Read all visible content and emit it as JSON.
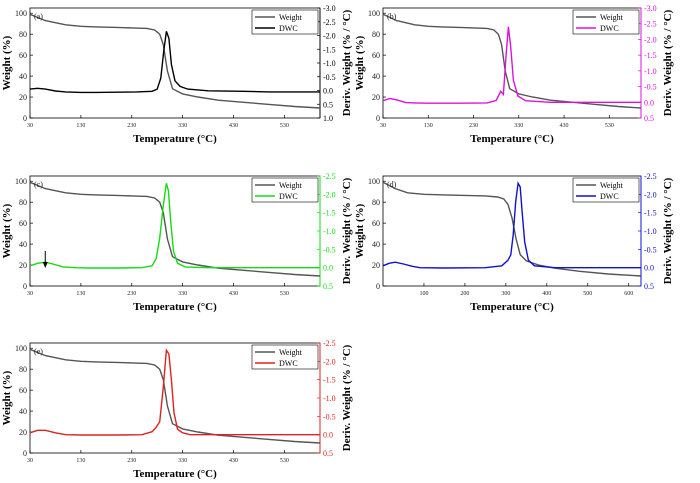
{
  "figure": "TGA and DTG curves, panels (a)-(e)",
  "chart_data": [
    {
      "type": "line",
      "panel": "(a)",
      "dwc_color": "#000000",
      "xlabel": "Temperature (°C)",
      "ylabel": "Weight (%)",
      "y2label": "Deriv. Weight (% / °C)",
      "xlim": [
        30,
        600
      ],
      "ylim": [
        0,
        105
      ],
      "y2lim": [
        -3.0,
        1.0
      ],
      "x_ticks": [
        "30",
        "130",
        "230",
        "330",
        "430",
        "530"
      ],
      "x_tick_values": [
        30,
        130,
        230,
        330,
        430,
        530
      ],
      "y_ticks": [
        "0",
        "20",
        "40",
        "60",
        "80",
        "100"
      ],
      "y2_ticks": [
        "-3.0",
        "-2.5",
        "-2.0",
        "-1.5",
        "-1.0",
        "-0.5",
        "0.0",
        "0.5",
        "1.0"
      ],
      "legend": [
        "Weight",
        "DWC"
      ],
      "series": [
        {
          "name": "Weight",
          "x": [
            30,
            60,
            100,
            130,
            160,
            200,
            230,
            260,
            275,
            285,
            292,
            300,
            310,
            330,
            360,
            400,
            450,
            500,
            550,
            600
          ],
          "y": [
            99,
            93,
            89,
            87.5,
            87,
            86.5,
            86,
            85.5,
            84,
            80,
            70,
            45,
            28,
            23,
            20,
            17,
            15,
            13,
            11,
            9.5
          ]
        },
        {
          "name": "DWC",
          "x": [
            30,
            45,
            60,
            80,
            100,
            130,
            160,
            200,
            240,
            270,
            280,
            287,
            293,
            298,
            303,
            308,
            315,
            325,
            340,
            380,
            450,
            500,
            600
          ],
          "y": [
            -0.05,
            -0.08,
            -0.05,
            0.02,
            0.05,
            0.07,
            0.07,
            0.06,
            0.05,
            0.03,
            -0.05,
            -0.45,
            -1.45,
            -2.15,
            -1.9,
            -0.95,
            -0.35,
            -0.15,
            -0.05,
            0.01,
            0.03,
            0.05,
            0.05
          ]
        }
      ]
    },
    {
      "type": "line",
      "panel": "(b)",
      "dwc_color": "#dd11dd",
      "xlabel": "Temperature (°C)",
      "ylabel": "Weight (%)",
      "y2label": "Deriv. Weight (% / °C)",
      "xlim": [
        30,
        600
      ],
      "ylim": [
        0,
        105
      ],
      "y2lim": [
        -3.0,
        0.5
      ],
      "x_ticks": [
        "30",
        "130",
        "230",
        "330",
        "430",
        "530"
      ],
      "x_tick_values": [
        30,
        130,
        230,
        330,
        430,
        530
      ],
      "y_ticks": [
        "0",
        "20",
        "40",
        "60",
        "80",
        "100"
      ],
      "y2_ticks": [
        "-3.0",
        "-2.5",
        "-2.0",
        "-1.5",
        "-1.0",
        "-0.5",
        "0.0",
        "0.5"
      ],
      "legend": [
        "Weight",
        "DWC"
      ],
      "series": [
        {
          "name": "Weight",
          "x": [
            30,
            60,
            100,
            130,
            160,
            200,
            230,
            260,
            275,
            285,
            292,
            300,
            310,
            330,
            360,
            400,
            450,
            500,
            550,
            600
          ],
          "y": [
            99,
            93,
            89,
            87.5,
            87,
            86.5,
            86,
            85.5,
            84,
            80,
            70,
            45,
            28,
            23,
            20,
            17,
            15,
            13,
            11,
            9.5
          ]
        },
        {
          "name": "DWC",
          "x": [
            30,
            45,
            60,
            80,
            100,
            130,
            200,
            260,
            280,
            290,
            296,
            302,
            307,
            312,
            318,
            328,
            345,
            400,
            500,
            600
          ],
          "y": [
            -0.05,
            -0.12,
            -0.08,
            0.01,
            0.02,
            0.03,
            0.03,
            0.02,
            -0.06,
            -0.35,
            -0.25,
            -1.5,
            -2.4,
            -1.8,
            -0.7,
            -0.2,
            -0.05,
            0.0,
            0.0,
            0.0
          ]
        }
      ]
    },
    {
      "type": "line",
      "panel": "(c)",
      "dwc_color": "#11dd11",
      "xlabel": "Temperature (°C)",
      "ylabel": "Weight (%)",
      "y2label": "Deriv. Weight (% / °C)",
      "xlim": [
        30,
        600
      ],
      "ylim": [
        0,
        105
      ],
      "y2lim": [
        -2.5,
        0.5
      ],
      "x_ticks": [
        "30",
        "130",
        "230",
        "330",
        "430",
        "530"
      ],
      "x_tick_values": [
        30,
        130,
        230,
        330,
        430,
        530
      ],
      "y_ticks": [
        "0",
        "20",
        "40",
        "60",
        "80",
        "100"
      ],
      "y2_ticks": [
        "-2.5",
        "-2.0",
        "-1.5",
        "-1.0",
        "-0.5",
        "0.0",
        "0.5"
      ],
      "legend": [
        "Weight",
        "DWC"
      ],
      "arrow_at_x": 60,
      "series": [
        {
          "name": "Weight",
          "x": [
            30,
            60,
            100,
            130,
            160,
            200,
            230,
            260,
            275,
            285,
            292,
            300,
            310,
            330,
            360,
            400,
            450,
            500,
            550,
            600
          ],
          "y": [
            99,
            93,
            89,
            87.5,
            87,
            86.5,
            86,
            85.5,
            84,
            80,
            70,
            45,
            28,
            23,
            20,
            17,
            15,
            13,
            11,
            9.5
          ]
        },
        {
          "name": "DWC",
          "x": [
            30,
            45,
            60,
            75,
            95,
            120,
            150,
            200,
            250,
            270,
            278,
            285,
            292,
            298,
            302,
            307,
            312,
            320,
            335,
            380,
            600
          ],
          "y": [
            -0.05,
            -0.12,
            -0.15,
            -0.1,
            -0.02,
            0.0,
            0.01,
            0.01,
            0.0,
            -0.05,
            -0.25,
            -0.8,
            -1.7,
            -2.3,
            -2.1,
            -1.2,
            -0.45,
            -0.12,
            -0.02,
            0.0,
            0.0
          ]
        }
      ]
    },
    {
      "type": "line",
      "panel": "(d)",
      "dwc_color": "#1111cc",
      "xlabel": "Temperature (°C)",
      "ylabel": "Weight (%)",
      "y2label": "Deriv. Weight (% / °C)",
      "xlim": [
        0,
        630
      ],
      "ylim": [
        0,
        105
      ],
      "y2lim": [
        -2.5,
        0.5
      ],
      "x_ticks": [
        "100",
        "200",
        "300",
        "400",
        "500",
        "600"
      ],
      "x_tick_values": [
        100,
        200,
        300,
        400,
        500,
        600
      ],
      "y_ticks": [
        "0",
        "20",
        "40",
        "60",
        "80",
        "100"
      ],
      "y2_ticks": [
        "-2.5",
        "-2.0",
        "-1.5",
        "-1.0",
        "-0.5",
        "0.0",
        "0.5"
      ],
      "legend": [
        "Weight",
        "DWC"
      ],
      "series": [
        {
          "name": "Weight",
          "x": [
            0,
            30,
            60,
            100,
            150,
            200,
            250,
            280,
            295,
            305,
            315,
            325,
            335,
            350,
            380,
            420,
            480,
            550,
            630
          ],
          "y": [
            99,
            93,
            89,
            87.5,
            87,
            86.5,
            86,
            85,
            83,
            78,
            65,
            45,
            30,
            24,
            20,
            17,
            14,
            11.5,
            9.5
          ]
        },
        {
          "name": "DWC",
          "x": [
            0,
            15,
            30,
            50,
            70,
            90,
            150,
            250,
            290,
            305,
            312,
            318,
            324,
            330,
            335,
            340,
            346,
            355,
            370,
            420,
            630
          ],
          "y": [
            -0.05,
            -0.12,
            -0.15,
            -0.1,
            -0.04,
            0.0,
            0.01,
            0.0,
            -0.05,
            -0.2,
            -0.35,
            -0.9,
            -1.8,
            -2.3,
            -2.2,
            -1.5,
            -0.7,
            -0.2,
            -0.05,
            0.0,
            0.0
          ]
        }
      ]
    },
    {
      "type": "line",
      "panel": "(e)",
      "dwc_color": "#dd2222",
      "xlabel": "Temperature (°C)",
      "ylabel": "Weight (%)",
      "y2label": "Deriv. Weight (% / °C)",
      "xlim": [
        30,
        600
      ],
      "ylim": [
        0,
        105
      ],
      "y2lim": [
        -2.5,
        0.5
      ],
      "x_ticks": [
        "30",
        "130",
        "230",
        "330",
        "430",
        "530"
      ],
      "x_tick_values": [
        30,
        130,
        230,
        330,
        430,
        530
      ],
      "y_ticks": [
        "0",
        "20",
        "40",
        "60",
        "80",
        "100"
      ],
      "y2_ticks": [
        "-2.5",
        "-2.0",
        "-1.5",
        "-1.0",
        "-0.5",
        "0.0",
        "0.5"
      ],
      "legend": [
        "Weight",
        "DWC"
      ],
      "series": [
        {
          "name": "Weight",
          "x": [
            30,
            60,
            100,
            130,
            160,
            200,
            230,
            260,
            275,
            285,
            292,
            300,
            310,
            330,
            360,
            400,
            450,
            500,
            550,
            600
          ],
          "y": [
            99,
            93,
            89,
            87.5,
            87,
            86.5,
            86,
            85.5,
            84,
            80,
            70,
            45,
            28,
            23,
            20,
            17,
            15,
            13,
            11,
            9.5
          ]
        },
        {
          "name": "DWC",
          "x": [
            30,
            45,
            60,
            80,
            100,
            130,
            200,
            250,
            270,
            278,
            285,
            292,
            298,
            303,
            308,
            313,
            320,
            330,
            345,
            400,
            600
          ],
          "y": [
            -0.05,
            -0.12,
            -0.12,
            -0.05,
            0.0,
            0.01,
            0.01,
            0.0,
            -0.08,
            -0.2,
            -0.35,
            -1.3,
            -2.3,
            -2.2,
            -1.5,
            -0.6,
            -0.15,
            -0.05,
            0.0,
            0.0,
            0.0
          ]
        }
      ]
    }
  ]
}
